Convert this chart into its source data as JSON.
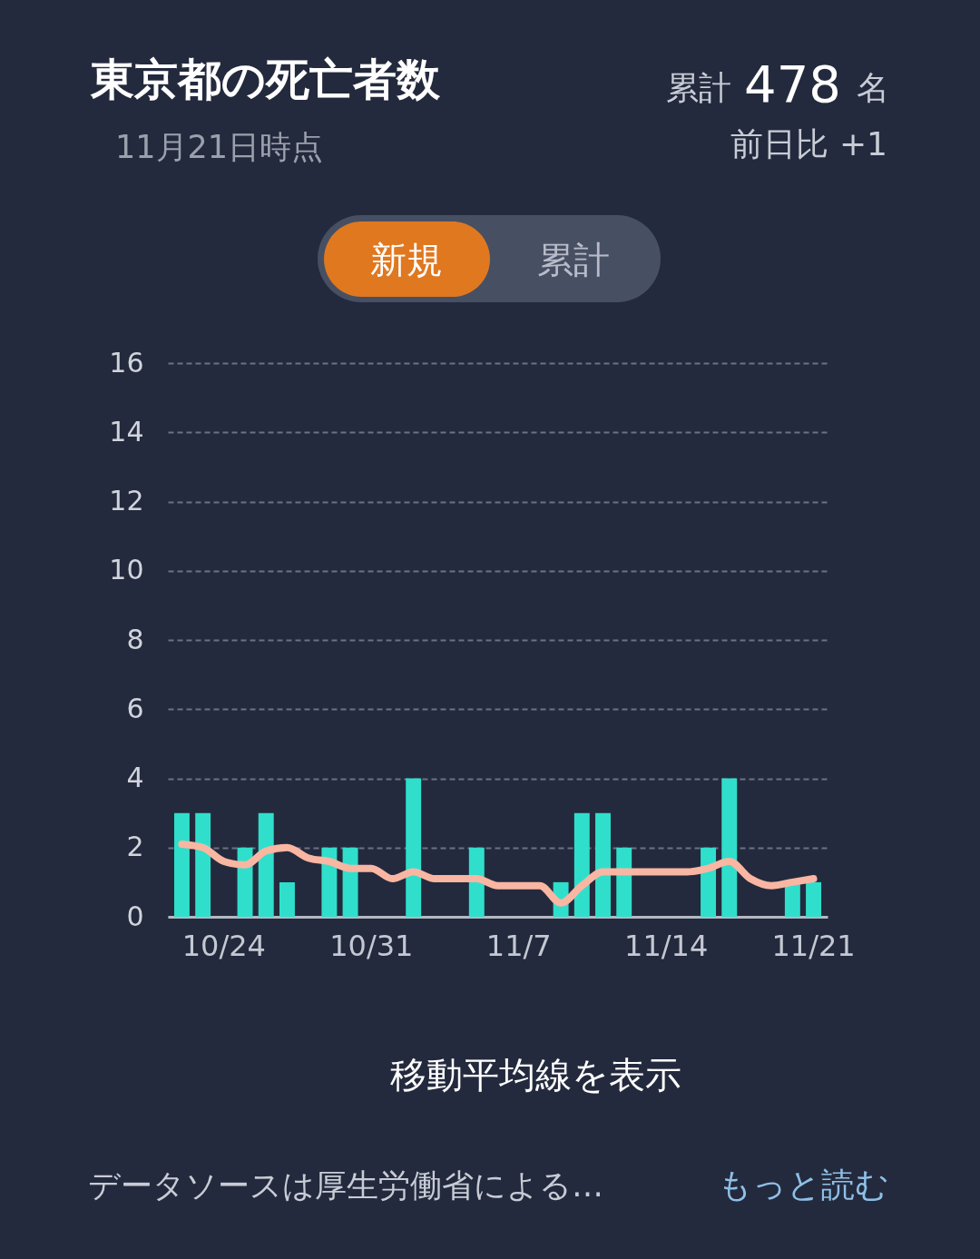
{
  "chart_data": {
    "type": "bar",
    "title": "東京都の死亡者数",
    "subtitle": "11月21日時点",
    "categories": [
      null,
      null,
      "10/24",
      null,
      null,
      null,
      null,
      null,
      null,
      "10/31",
      null,
      null,
      null,
      null,
      null,
      null,
      "11/7",
      null,
      null,
      null,
      null,
      null,
      null,
      "11/14",
      null,
      null,
      null,
      null,
      null,
      null,
      "11/21"
    ],
    "series": [
      {
        "color": "#2fdfcc",
        "values": [
          3,
          3,
          0,
          2,
          3,
          1,
          0,
          2,
          2,
          0,
          0,
          4,
          0,
          0,
          2,
          0,
          0,
          0,
          1,
          3,
          3,
          2,
          0,
          0,
          0,
          2,
          4,
          0,
          0,
          1,
          1
        ]
      },
      {
        "type": "line",
        "color": "#f9b6a2",
        "values": [
          2.1,
          2.0,
          1.6,
          1.5,
          1.9,
          2.0,
          1.7,
          1.6,
          1.4,
          1.4,
          1.1,
          1.3,
          1.1,
          1.1,
          1.1,
          0.9,
          0.9,
          0.9,
          0.4,
          0.9,
          1.3,
          1.3,
          1.3,
          1.3,
          1.3,
          1.4,
          1.6,
          1.1,
          0.9,
          1.0,
          1.1
        ]
      }
    ],
    "ylim": [
      0,
      16
    ],
    "yticks": [
      0,
      2,
      4,
      6,
      8,
      10,
      12,
      14,
      16
    ],
    "grid": "y",
    "annotations": [
      "累計 478 名",
      "前日比 +1",
      "新規",
      "累計",
      "移動平均線を表示",
      "データソースは厚生労働省による…",
      "もっと読む"
    ]
  }
}
